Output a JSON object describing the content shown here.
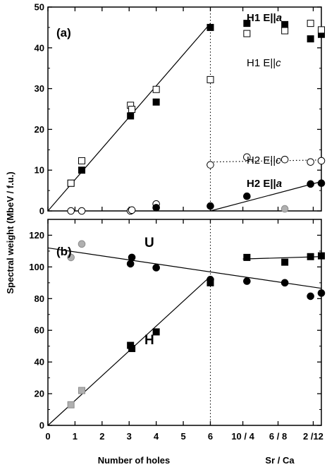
{
  "chart_data": [
    {
      "type": "scatter",
      "panel_label": "(a)",
      "ylim": [
        0,
        50
      ],
      "yticks": [
        "0",
        "10",
        "20",
        "30",
        "40",
        "50"
      ],
      "annotations": [
        {
          "id": "h1a",
          "prefix": "H1 E||",
          "suffix": "a",
          "bold": true
        },
        {
          "id": "h1c",
          "prefix": "H1 E||",
          "suffix": "c",
          "bold": false
        },
        {
          "id": "h2c",
          "prefix": "H2 E||",
          "suffix": "c",
          "bold": false
        },
        {
          "id": "h2a",
          "prefix": "H2 E||",
          "suffix": "a",
          "bold": true
        }
      ],
      "series": [
        {
          "name": "H1 E||a",
          "marker": "square",
          "fill": "#000000",
          "points": [
            [
              0.85,
              6.8
            ],
            [
              1.25,
              10
            ],
            [
              3.05,
              23.3
            ],
            [
              4,
              26.7
            ],
            [
              6,
              45
            ],
            [
              7.35,
              46
            ],
            [
              8.75,
              45.7
            ],
            [
              9.7,
              42.2
            ],
            [
              10.1,
              43.3
            ]
          ]
        },
        {
          "name": "H1 E||c",
          "marker": "square",
          "fill": "#ffffff",
          "points": [
            [
              0.85,
              6.8
            ],
            [
              1.25,
              12.3
            ],
            [
              3.05,
              25.9
            ],
            [
              3.1,
              24.9
            ],
            [
              4,
              29.8
            ],
            [
              6,
              32.2
            ],
            [
              7.35,
              43.5
            ],
            [
              8.75,
              44.2
            ],
            [
              9.7,
              46
            ],
            [
              10.1,
              44.4
            ]
          ]
        },
        {
          "name": "H2 E||c",
          "marker": "circle",
          "fill": "#ffffff",
          "points": [
            [
              0.85,
              0
            ],
            [
              1.25,
              0
            ],
            [
              3.05,
              0
            ],
            [
              3.1,
              0.2
            ],
            [
              4,
              1.7
            ],
            [
              6,
              11.3
            ],
            [
              7.35,
              13.2
            ],
            [
              8.75,
              12.6
            ],
            [
              9.7,
              12
            ],
            [
              10.1,
              12.3
            ]
          ]
        },
        {
          "name": "H2 E||a",
          "marker": "circle",
          "fill": "#000000",
          "points": [
            [
              4,
              0.8
            ],
            [
              6,
              1.2
            ],
            [
              7.35,
              3.6
            ],
            [
              9.7,
              6.6
            ],
            [
              10.1,
              6.8
            ]
          ]
        },
        {
          "name": "",
          "marker": "circle",
          "fill": "#b0b0b0",
          "points": [
            [
              8.75,
              0.5
            ]
          ]
        }
      ],
      "lines": [
        {
          "from": [
            0,
            0
          ],
          "to": [
            6,
            46
          ],
          "style": "solid"
        },
        {
          "from": [
            6,
            12
          ],
          "to": [
            10.1,
            12.5
          ],
          "style": "dotted"
        },
        {
          "from": [
            6,
            0
          ],
          "to": [
            10.1,
            7.2
          ],
          "style": "solid"
        }
      ]
    },
    {
      "type": "scatter",
      "panel_label": "(b)",
      "ylim": [
        0,
        130
      ],
      "yticks": [
        "0",
        "20",
        "40",
        "60",
        "80",
        "100",
        "120"
      ],
      "annotations": [
        {
          "id": "U",
          "text": "U"
        },
        {
          "id": "H",
          "text": "H"
        }
      ],
      "series": [
        {
          "name": "U",
          "marker": "circle",
          "fill": "#000000",
          "points": [
            [
              3.05,
              102
            ],
            [
              3.1,
              106
            ],
            [
              4,
              99.5
            ],
            [
              6,
              92
            ],
            [
              7.35,
              91
            ],
            [
              8.75,
              90
            ],
            [
              9.7,
              81.5
            ],
            [
              10.1,
              83.5
            ]
          ]
        },
        {
          "name": "",
          "marker": "circle",
          "fill": "#b0b0b0",
          "points": [
            [
              0.85,
              106
            ],
            [
              1.25,
              114.5
            ]
          ]
        },
        {
          "name": "H",
          "marker": "square",
          "fill": "#000000",
          "points": [
            [
              3.05,
              50.5
            ],
            [
              3.1,
              48.5
            ],
            [
              4,
              59
            ],
            [
              6,
              90
            ],
            [
              7.35,
              106
            ],
            [
              8.75,
              103
            ],
            [
              9.7,
              106.5
            ],
            [
              10.1,
              107
            ]
          ]
        },
        {
          "name": "",
          "marker": "square",
          "fill": "#b0b0b0",
          "points": [
            [
              0.85,
              13
            ],
            [
              1.25,
              22
            ]
          ]
        }
      ],
      "lines": [
        {
          "from": [
            0,
            112
          ],
          "to": [
            10.1,
            86.5
          ],
          "style": "solid"
        },
        {
          "from": [
            0,
            0
          ],
          "to": [
            6,
            94
          ],
          "style": "solid"
        },
        {
          "from": [
            7.2,
            105
          ],
          "to": [
            10.1,
            106.5
          ],
          "style": "solid"
        }
      ]
    }
  ],
  "x_axis": {
    "xlim": [
      0,
      10.1
    ],
    "tick_labels": [
      {
        "x": 0,
        "label": "0"
      },
      {
        "x": 1,
        "label": "1"
      },
      {
        "x": 2,
        "label": "2"
      },
      {
        "x": 3,
        "label": "3"
      },
      {
        "x": 4,
        "label": "4"
      },
      {
        "x": 5,
        "label": "5"
      },
      {
        "x": 6,
        "label": "6"
      },
      {
        "x": 7.2,
        "label": "10 / 4"
      },
      {
        "x": 8.5,
        "label": "6 / 8"
      },
      {
        "x": 9.8,
        "label": "2 /12"
      }
    ],
    "vline_dotted_at": 6
  },
  "text": {
    "ylabel": "Spectral weight (MbeV / f.u.)",
    "xlabel_left": "Number of holes",
    "xlabel_right": "Sr / Ca"
  }
}
